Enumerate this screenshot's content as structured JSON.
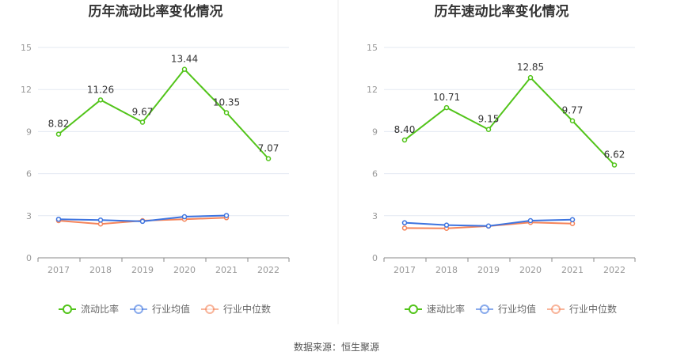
{
  "chart_data": [
    {
      "type": "line",
      "title": "历年流动比率变化情况",
      "categories": [
        "2017",
        "2018",
        "2019",
        "2020",
        "2021",
        "2022"
      ],
      "ylim": [
        0,
        15
      ],
      "yticks": [
        0,
        3,
        6,
        9,
        12,
        15
      ],
      "grid": true,
      "legend": "bottom",
      "series": [
        {
          "name": "流动比率",
          "color": "#52c41a",
          "values": [
            8.82,
            11.26,
            9.67,
            13.44,
            10.35,
            7.07
          ],
          "labels": [
            "8.82",
            "11.26",
            "9.67",
            "13.44",
            "10.35",
            "7.07"
          ]
        },
        {
          "name": "行业均值",
          "color": "#3d74e0",
          "values": [
            2.75,
            2.69,
            2.6,
            2.93,
            3.02,
            null
          ]
        },
        {
          "name": "行业中位数",
          "color": "#f5845a",
          "values": [
            2.65,
            2.41,
            2.65,
            2.75,
            2.86,
            null
          ]
        }
      ]
    },
    {
      "type": "line",
      "title": "历年速动比率变化情况",
      "categories": [
        "2017",
        "2018",
        "2019",
        "2020",
        "2021",
        "2022"
      ],
      "ylim": [
        0,
        15
      ],
      "yticks": [
        0,
        3,
        6,
        9,
        12,
        15
      ],
      "grid": true,
      "legend": "bottom",
      "series": [
        {
          "name": "速动比率",
          "color": "#52c41a",
          "values": [
            8.4,
            10.71,
            9.15,
            12.85,
            9.77,
            6.62
          ],
          "labels": [
            "8.40",
            "10.71",
            "9.15",
            "12.85",
            "9.77",
            "6.62"
          ]
        },
        {
          "name": "行业均值",
          "color": "#3d74e0",
          "values": [
            2.5,
            2.33,
            2.27,
            2.65,
            2.72,
            null
          ]
        },
        {
          "name": "行业中位数",
          "color": "#f5845a",
          "values": [
            2.12,
            2.1,
            2.26,
            2.52,
            2.44,
            null
          ]
        }
      ]
    }
  ],
  "footer": "数据来源：恒生聚源"
}
